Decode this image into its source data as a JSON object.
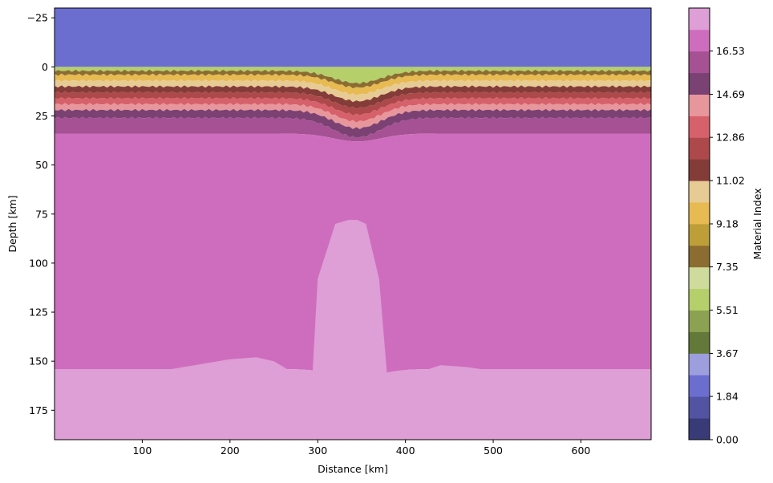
{
  "chart_data": {
    "type": "heatmap",
    "title": "",
    "xlabel": "Distance [km]",
    "ylabel": "Depth [km]",
    "colorbar_label": "Material Index",
    "xlim": [
      0,
      680
    ],
    "ylim": [
      190,
      -30
    ],
    "y_inverted": true,
    "x_ticks": [
      100,
      200,
      300,
      400,
      500,
      600
    ],
    "x_tick_labels": [
      "100",
      "200",
      "300",
      "400",
      "500",
      "600"
    ],
    "y_ticks": [
      -25,
      0,
      25,
      50,
      75,
      100,
      125,
      150,
      175
    ],
    "y_tick_labels": [
      "−25",
      "0",
      "25",
      "50",
      "75",
      "100",
      "125",
      "150",
      "175"
    ],
    "colorbar_range": [
      0,
      18.36
    ],
    "colorbar_ticks": [
      0.0,
      1.84,
      3.67,
      5.51,
      7.35,
      9.18,
      11.02,
      12.86,
      14.69,
      16.53
    ],
    "colorbar_tick_labels": [
      "0.00",
      "1.84",
      "3.67",
      "5.51",
      "7.35",
      "9.18",
      "11.02",
      "12.86",
      "14.69",
      "16.53"
    ],
    "colormap": [
      "#393b79",
      "#5254a3",
      "#6b6ecf",
      "#9c9ede",
      "#637939",
      "#8ca252",
      "#b5cf6b",
      "#cedb9c",
      "#8c6d31",
      "#bd9e39",
      "#e7ba52",
      "#e7cb94",
      "#843c39",
      "#ad494a",
      "#d6616b",
      "#e7969c",
      "#7b4173",
      "#a55194",
      "#ce6dbd",
      "#de9ed6"
    ],
    "grid": false,
    "layers": [
      {
        "material": 2,
        "top_km": -30
      },
      {
        "material": 6,
        "top_km": 0
      },
      {
        "material": 8,
        "top_km": 2
      },
      {
        "material": 10,
        "top_km": 4
      },
      {
        "material": 11,
        "top_km": 7
      },
      {
        "material": 12,
        "top_km": 10
      },
      {
        "material": 13,
        "top_km": 13
      },
      {
        "material": 14,
        "top_km": 16
      },
      {
        "material": 15,
        "top_km": 19
      },
      {
        "material": 16,
        "top_km": 22
      },
      {
        "material": 17,
        "top_km": 26
      },
      {
        "material": 18,
        "top_km": 34
      },
      {
        "material": 19,
        "top_km": 154
      }
    ],
    "mantle_boundary_profile": {
      "x": [
        0,
        40,
        80,
        120,
        160,
        200,
        230,
        250,
        265,
        275,
        282,
        290,
        300,
        320,
        335,
        345,
        355,
        370,
        385,
        392,
        400,
        410,
        420,
        440,
        470,
        500,
        540,
        580,
        620,
        680
      ],
      "depth": [
        154,
        155,
        157,
        155,
        152,
        149,
        148,
        150,
        154,
        162,
        175,
        189,
        108,
        80,
        78,
        78,
        80,
        108,
        189,
        182,
        166,
        158,
        155,
        152,
        153,
        155,
        155,
        155,
        154,
        154
      ]
    }
  }
}
